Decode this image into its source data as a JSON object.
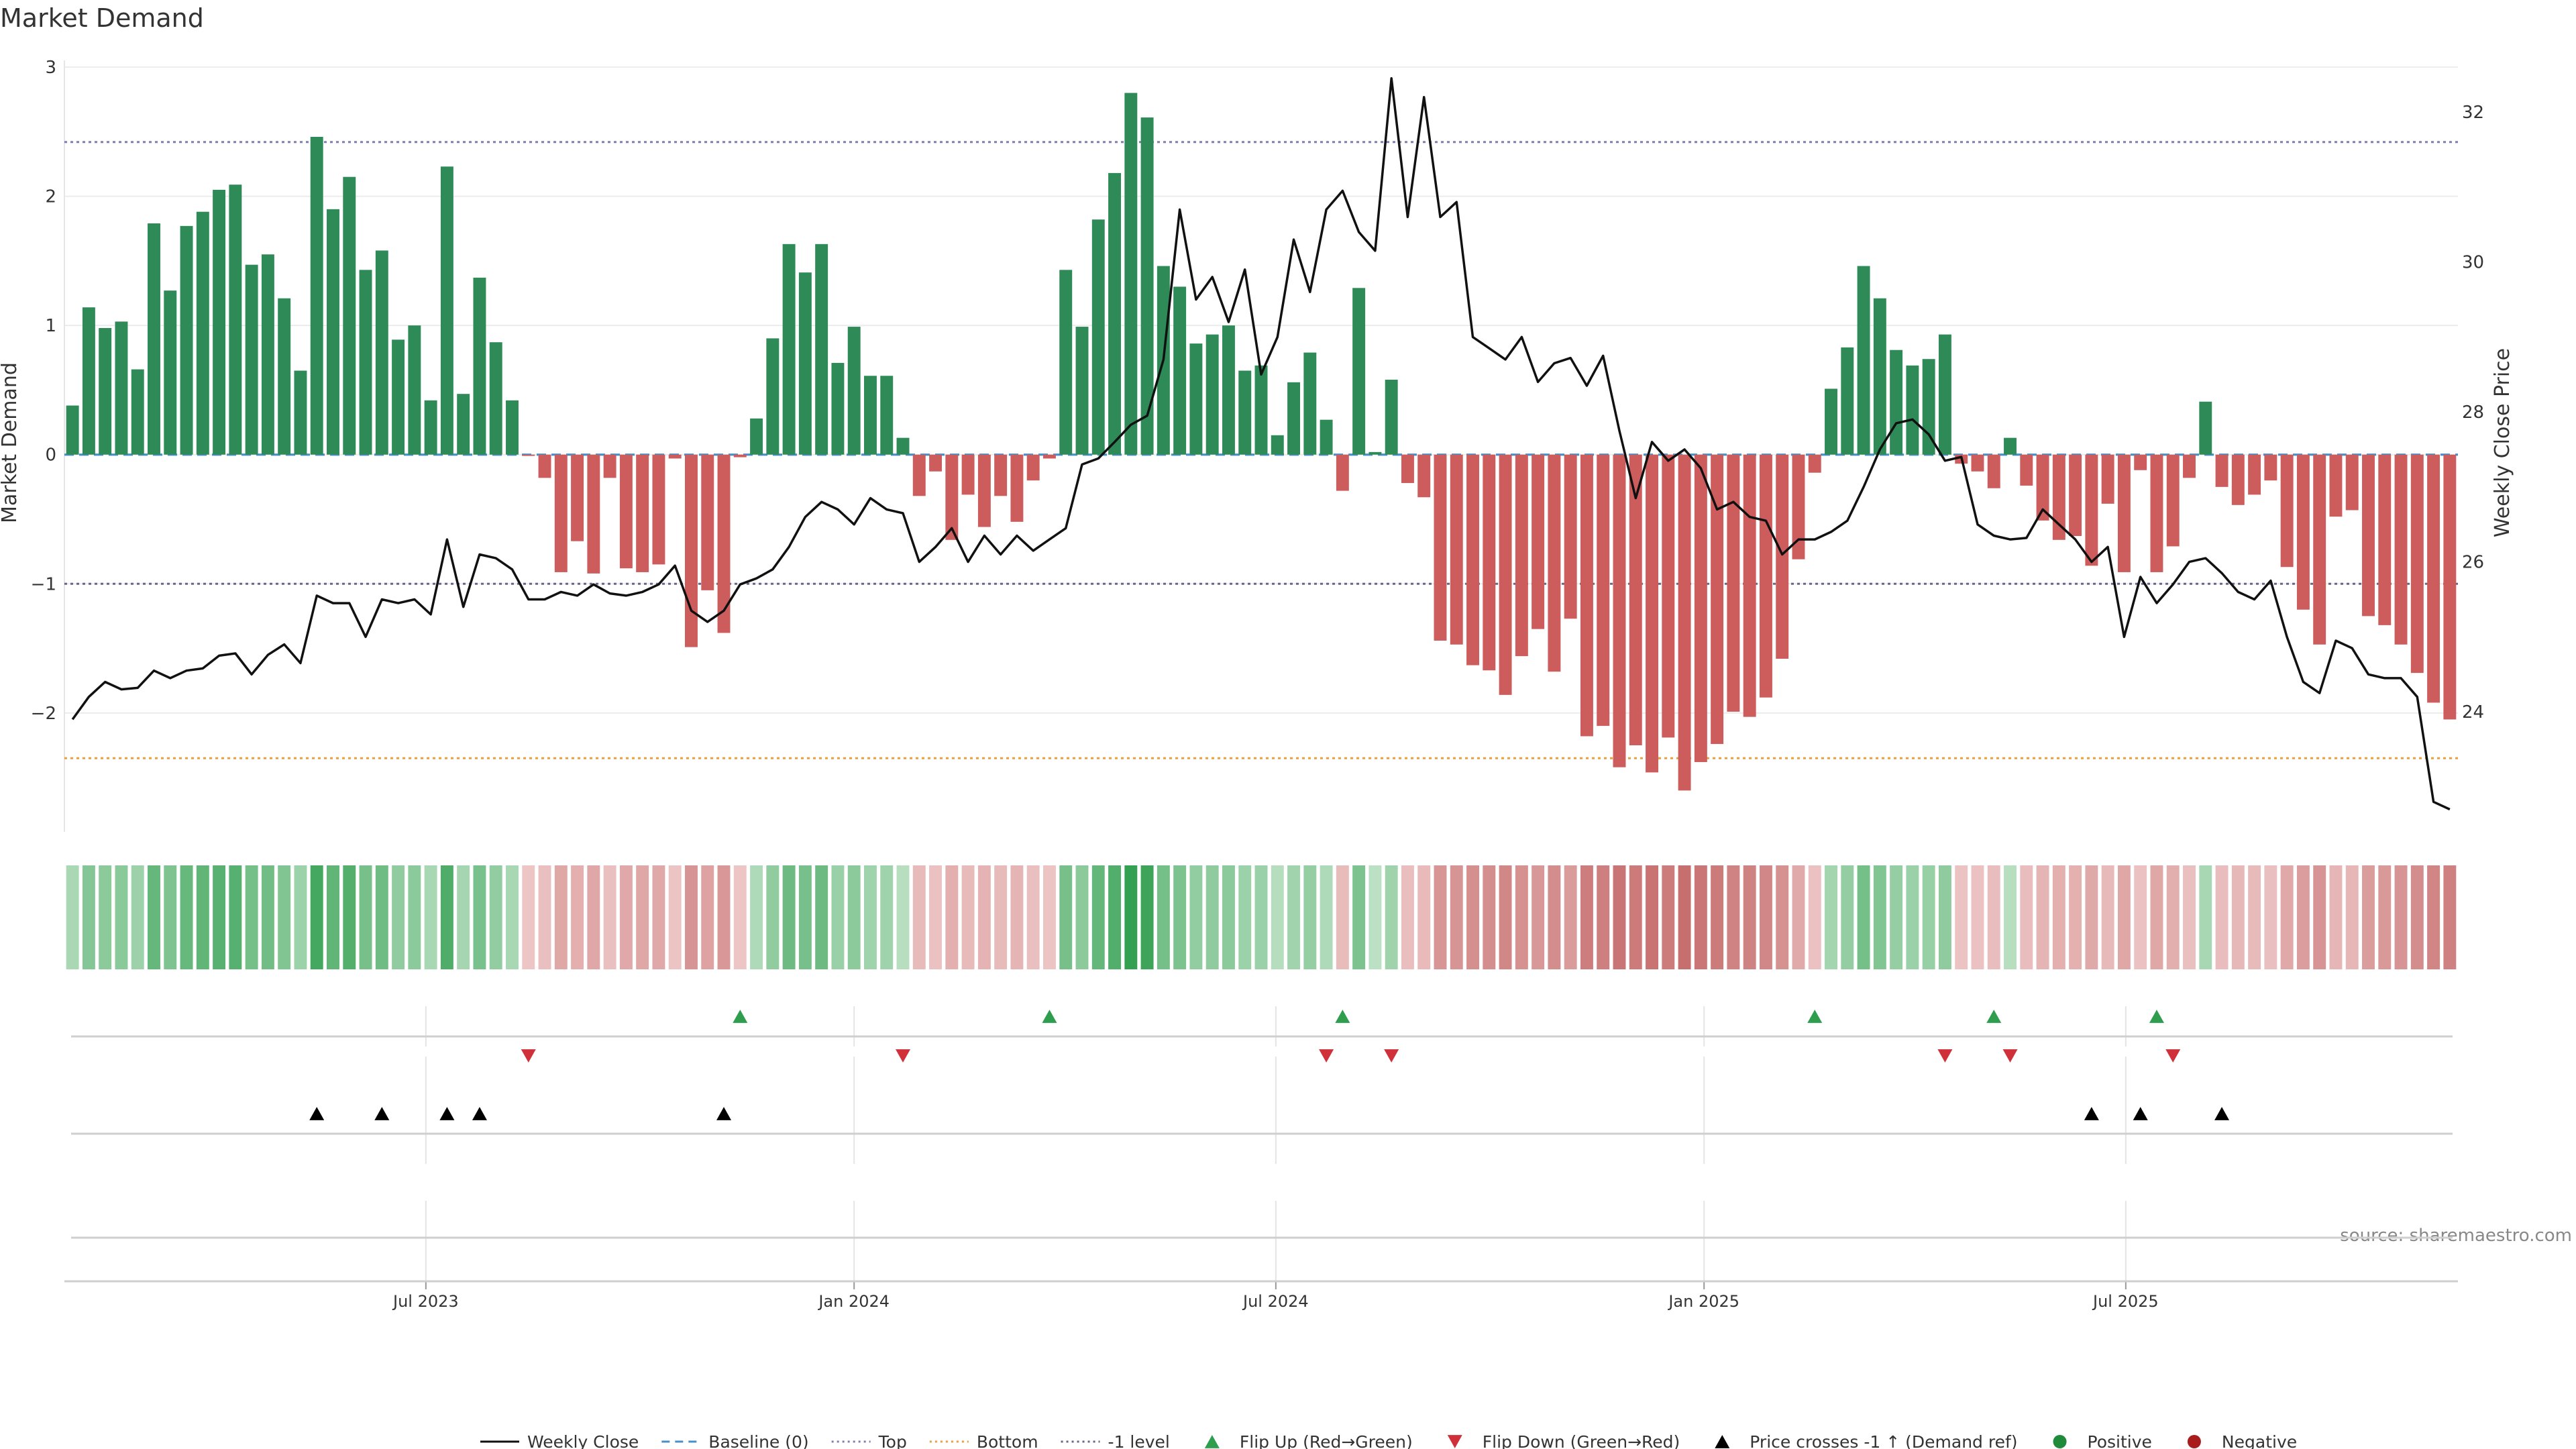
{
  "chart_data": {
    "type": "bar",
    "title": "Market Demand",
    "ylabel_left": "Market Demand",
    "ylabel_right": "Weekly Close Price",
    "source": "source: sharemaestro.com",
    "left_ylim": [
      -2.92,
      3.0
    ],
    "left_yticks": [
      3,
      2,
      1,
      0,
      -1,
      -2
    ],
    "left_ytick_labels": [
      "3",
      "2",
      "1",
      "0",
      "−1",
      "−2"
    ],
    "right_ylim": [
      22.4,
      32.6
    ],
    "right_yticks": [
      32,
      30,
      28,
      26,
      24
    ],
    "right_ytick_labels": [
      "32",
      "30",
      "28",
      "26",
      "24"
    ],
    "x_ticks": [
      {
        "label": "Jul 2023",
        "week": 22.2
      },
      {
        "label": "Jan 2024",
        "week": 48.5
      },
      {
        "label": "Jul 2024",
        "week": 74.4
      },
      {
        "label": "Jan 2025",
        "week": 100.7
      },
      {
        "label": "Jul 2025",
        "week": 126.6
      }
    ],
    "reference_lines": [
      {
        "name": "Top",
        "value": 2.42,
        "color": "#7f7fb0",
        "style": "dotted"
      },
      {
        "name": "-1 level",
        "value": -1.0,
        "color": "#666688",
        "style": "dotted"
      },
      {
        "name": "Bottom",
        "value": -2.35,
        "color": "#e8a040",
        "style": "dotted"
      },
      {
        "name": "Baseline (0)",
        "value": 0,
        "color": "#4a90c8",
        "style": "dashed"
      }
    ],
    "demand": [
      0.38,
      1.14,
      0.98,
      1.03,
      0.66,
      1.79,
      1.27,
      1.77,
      1.88,
      2.05,
      2.09,
      1.47,
      1.55,
      1.21,
      0.65,
      2.46,
      1.9,
      2.15,
      1.43,
      1.58,
      0.89,
      1.0,
      0.42,
      2.23,
      0.47,
      1.37,
      0.87,
      0.42,
      -0.01,
      -0.18,
      -0.91,
      -0.67,
      -0.92,
      -0.18,
      -0.88,
      -0.91,
      -0.85,
      -0.03,
      -1.49,
      -1.05,
      -1.38,
      -0.02,
      0.28,
      0.9,
      1.63,
      1.41,
      1.63,
      0.71,
      0.99,
      0.61,
      0.61,
      0.13,
      -0.32,
      -0.13,
      -0.66,
      -0.31,
      -0.56,
      -0.32,
      -0.52,
      -0.2,
      -0.03,
      1.43,
      0.99,
      1.82,
      2.18,
      2.8,
      2.61,
      1.46,
      1.3,
      0.86,
      0.93,
      1.0,
      0.65,
      0.69,
      0.15,
      0.56,
      0.79,
      0.27,
      -0.28,
      1.29,
      0.02,
      0.58,
      -0.22,
      -0.33,
      -1.44,
      -1.47,
      -1.63,
      -1.67,
      -1.86,
      -1.56,
      -1.35,
      -1.68,
      -1.27,
      -2.18,
      -2.1,
      -2.42,
      -2.25,
      -2.46,
      -2.19,
      -2.6,
      -2.38,
      -2.24,
      -1.99,
      -2.03,
      -1.88,
      -1.58,
      -0.81,
      -0.14,
      0.51,
      0.83,
      1.46,
      1.21,
      0.81,
      0.69,
      0.74,
      0.93,
      -0.07,
      -0.13,
      -0.26,
      0.13,
      -0.24,
      -0.51,
      -0.66,
      -0.63,
      -0.86,
      -0.38,
      -0.91,
      -0.12,
      -0.91,
      -0.71,
      -0.18,
      0.41,
      -0.25,
      -0.39,
      -0.31,
      -0.2,
      -0.87,
      -1.2,
      -1.47,
      -0.48,
      -0.43,
      -1.25,
      -1.32,
      -1.47,
      -1.69,
      -1.92,
      -2.05
    ],
    "weekly_close": [
      23.9,
      24.2,
      24.4,
      24.3,
      24.32,
      24.55,
      24.45,
      24.55,
      24.58,
      24.75,
      24.78,
      24.5,
      24.76,
      24.9,
      24.65,
      25.55,
      25.45,
      25.45,
      25.0,
      25.5,
      25.45,
      25.5,
      25.3,
      26.3,
      25.4,
      26.1,
      26.05,
      25.9,
      25.5,
      25.5,
      25.6,
      25.55,
      25.7,
      25.58,
      25.55,
      25.6,
      25.7,
      25.95,
      25.35,
      25.2,
      25.35,
      25.7,
      25.78,
      25.9,
      26.2,
      26.6,
      26.8,
      26.7,
      26.5,
      26.85,
      26.7,
      26.65,
      26.0,
      26.2,
      26.45,
      26.0,
      26.35,
      26.1,
      26.35,
      26.15,
      26.3,
      26.45,
      27.3,
      27.38,
      27.6,
      27.83,
      27.95,
      28.7,
      30.7,
      29.5,
      29.8,
      29.2,
      29.9,
      28.5,
      29.0,
      30.3,
      29.6,
      30.7,
      30.95,
      30.4,
      30.15,
      32.45,
      30.6,
      32.2,
      30.6,
      30.8,
      29.0,
      28.85,
      28.7,
      29.0,
      28.4,
      28.65,
      28.72,
      28.35,
      28.75,
      27.75,
      26.85,
      27.6,
      27.35,
      27.5,
      27.25,
      26.7,
      26.8,
      26.6,
      26.55,
      26.1,
      26.3,
      26.3,
      26.4,
      26.55,
      27.0,
      27.5,
      27.85,
      27.9,
      27.7,
      27.35,
      27.4,
      26.5,
      26.35,
      26.3,
      26.32,
      26.7,
      26.5,
      26.3,
      26.0,
      26.2,
      25.0,
      25.8,
      25.45,
      25.7,
      26.0,
      26.05,
      25.85,
      25.6,
      25.5,
      25.75,
      25.0,
      24.4,
      24.25,
      24.95,
      24.85,
      24.5,
      24.45,
      24.45,
      24.2,
      22.8,
      22.7
    ],
    "flip_up_weeks": [
      41.5,
      60.5,
      78.5,
      107.5,
      118.5,
      128.5
    ],
    "flip_down_weeks": [
      28.5,
      51.5,
      77.5,
      81.5,
      115.5,
      119.5,
      129.5
    ],
    "price_cross_weeks": [
      15.5,
      19.5,
      23.5,
      25.5,
      40.5,
      124.5,
      127.5,
      132.5
    ],
    "legend": [
      {
        "label": "Weekly Close",
        "kind": "line",
        "color": "#111111",
        "dash": ""
      },
      {
        "label": "Baseline (0)",
        "kind": "line",
        "color": "#4a90c8",
        "dash": "12 8"
      },
      {
        "label": "Top",
        "kind": "line",
        "color": "#7f7fb0",
        "dash": "3 5"
      },
      {
        "label": "Bottom",
        "kind": "line",
        "color": "#e8a040",
        "dash": "3 5"
      },
      {
        "label": "-1 level",
        "kind": "line",
        "color": "#666688",
        "dash": "3 5"
      },
      {
        "label": "Flip Up (Red→Green)",
        "kind": "tri-up",
        "color": "#2e9e4e"
      },
      {
        "label": "Flip Down (Green→Red)",
        "kind": "tri-down",
        "color": "#d0303a"
      },
      {
        "label": "Price crosses -1 ↑ (Demand ref)",
        "kind": "tri-up",
        "color": "#000000"
      },
      {
        "label": "Positive",
        "kind": "dot",
        "color": "#1e8a3a"
      },
      {
        "label": "Negative",
        "kind": "dot",
        "color": "#a81c1c"
      }
    ],
    "colors": {
      "positive_bar": "#2e8b57",
      "negative_bar": "#cd5c5c",
      "price_line": "#111111"
    }
  }
}
